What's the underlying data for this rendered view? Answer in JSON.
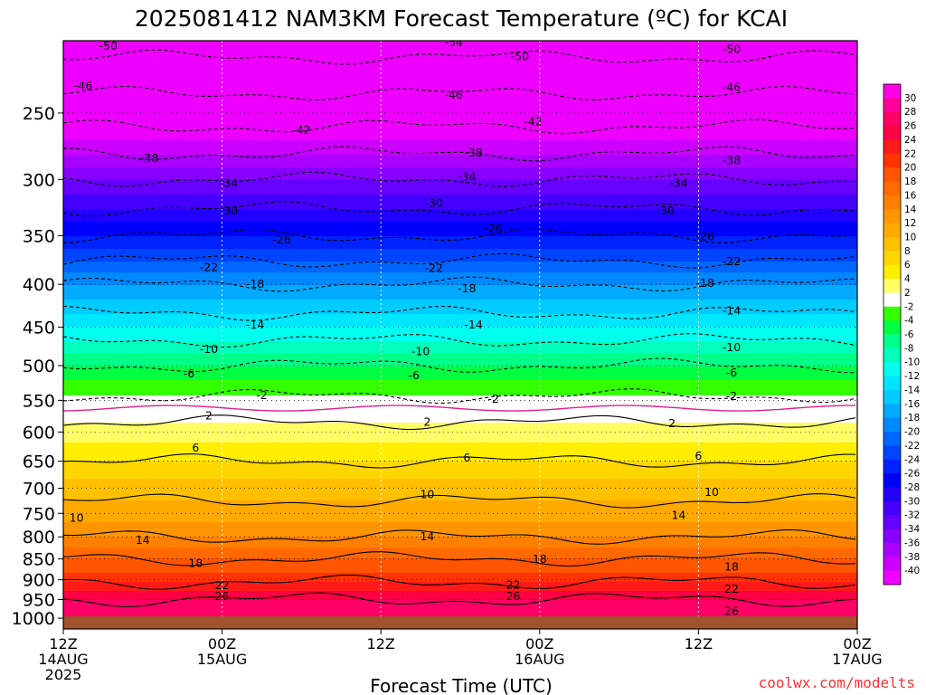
{
  "chart_data": {
    "type": "heatmap",
    "title": "2025081412 NAM3KM Forecast Temperature (ºC) for KCAI",
    "xlabel": "Forecast Time (UTC)",
    "ylabel": "",
    "credit": "coolwx.com/modelts",
    "y_axis": {
      "scale": "log-pressure",
      "range": [
        1030,
        205
      ],
      "tick_labels": [
        "250",
        "300",
        "350",
        "400",
        "450",
        "500",
        "550",
        "600",
        "650",
        "700",
        "750",
        "800",
        "850",
        "900",
        "950",
        "1000"
      ]
    },
    "x_axis": {
      "range_hours": [
        0,
        60
      ],
      "ticks": [
        {
          "hour": 0,
          "line1": "12Z",
          "line2": "14AUG",
          "line3": "2025"
        },
        {
          "hour": 12,
          "line1": "00Z",
          "line2": "15AUG",
          "line3": ""
        },
        {
          "hour": 24,
          "line1": "12Z",
          "line2": "",
          "line3": ""
        },
        {
          "hour": 36,
          "line1": "00Z",
          "line2": "16AUG",
          "line3": ""
        },
        {
          "hour": 48,
          "line1": "12Z",
          "line2": "",
          "line3": ""
        },
        {
          "hour": 60,
          "line1": "00Z",
          "line2": "17AUG",
          "line3": ""
        }
      ]
    },
    "colorbar": {
      "labels": [
        "30",
        "28",
        "26",
        "24",
        "22",
        "20",
        "18",
        "16",
        "14",
        "12",
        "10",
        "8",
        "6",
        "4",
        "2",
        "-2",
        "-4",
        "-6",
        "-8",
        "-10",
        "-12",
        "-14",
        "-16",
        "-18",
        "-20",
        "-22",
        "-24",
        "-26",
        "-28",
        "-30",
        "-32",
        "-34",
        "-36",
        "-38",
        "-40"
      ],
      "colors": [
        "#ff00e6",
        "#ff0099",
        "#ff0066",
        "#ff0044",
        "#ff1a1a",
        "#ff3300",
        "#ff5500",
        "#ff6a00",
        "#ff8000",
        "#ff9500",
        "#ffaa00",
        "#ffc000",
        "#ffd700",
        "#ffee00",
        "#ffff66",
        "#ffffff",
        "#33ff00",
        "#00ff40",
        "#00ff88",
        "#00ffbb",
        "#00ffee",
        "#00e6ff",
        "#00ccff",
        "#00aaff",
        "#0088ff",
        "#0066ff",
        "#0044ff",
        "#0022ff",
        "#0000ff",
        "#2200ff",
        "#4400ff",
        "#6600ff",
        "#8800ff",
        "#aa00ff",
        "#cc00ff",
        "#ee00ff"
      ]
    },
    "temperature_profile": [
      {
        "pressure": 1000,
        "temp": 28
      },
      {
        "pressure": 975,
        "temp": 27.5
      },
      {
        "pressure": 950,
        "temp": 26
      },
      {
        "pressure": 925,
        "temp": 23.5
      },
      {
        "pressure": 900,
        "temp": 21.5
      },
      {
        "pressure": 875,
        "temp": 19.5
      },
      {
        "pressure": 850,
        "temp": 18
      },
      {
        "pressure": 825,
        "temp": 16
      },
      {
        "pressure": 800,
        "temp": 14
      },
      {
        "pressure": 775,
        "temp": 12.5
      },
      {
        "pressure": 750,
        "temp": 11
      },
      {
        "pressure": 725,
        "temp": 10
      },
      {
        "pressure": 700,
        "temp": 9
      },
      {
        "pressure": 675,
        "temp": 7.5
      },
      {
        "pressure": 650,
        "temp": 6
      },
      {
        "pressure": 625,
        "temp": 4.5
      },
      {
        "pressure": 600,
        "temp": 2.8
      },
      {
        "pressure": 575,
        "temp": 1.5
      },
      {
        "pressure": 550,
        "temp": -1.5
      },
      {
        "pressure": 525,
        "temp": -3.5
      },
      {
        "pressure": 500,
        "temp": -6
      },
      {
        "pressure": 475,
        "temp": -9
      },
      {
        "pressure": 450,
        "temp": -12
      },
      {
        "pressure": 425,
        "temp": -15
      },
      {
        "pressure": 400,
        "temp": -18
      },
      {
        "pressure": 375,
        "temp": -22
      },
      {
        "pressure": 350,
        "temp": -26
      },
      {
        "pressure": 325,
        "temp": -30
      },
      {
        "pressure": 300,
        "temp": -34
      },
      {
        "pressure": 275,
        "temp": -39
      },
      {
        "pressure": 250,
        "temp": -44
      },
      {
        "pressure": 225,
        "temp": -48
      },
      {
        "pressure": 205,
        "temp": -52
      }
    ],
    "contour_labels": [
      {
        "text": "-50",
        "hour": 3.4,
        "pressure": 208
      },
      {
        "text": "-54",
        "hour": 29.5,
        "pressure": 206
      },
      {
        "text": "-50",
        "hour": 34.5,
        "pressure": 214
      },
      {
        "text": "-50",
        "hour": 50.5,
        "pressure": 210
      },
      {
        "text": "-46",
        "hour": 1.5,
        "pressure": 232
      },
      {
        "text": "-46",
        "hour": 29.5,
        "pressure": 238
      },
      {
        "text": "-46",
        "hour": 50.5,
        "pressure": 233
      },
      {
        "text": "-42",
        "hour": 18,
        "pressure": 262
      },
      {
        "text": "-42",
        "hour": 35.5,
        "pressure": 256
      },
      {
        "text": "-38",
        "hour": 6.5,
        "pressure": 283
      },
      {
        "text": "-38",
        "hour": 31,
        "pressure": 279
      },
      {
        "text": "-38",
        "hour": 50.5,
        "pressure": 285
      },
      {
        "text": "-34",
        "hour": 12.5,
        "pressure": 303
      },
      {
        "text": "-34",
        "hour": 30.5,
        "pressure": 298
      },
      {
        "text": "-34",
        "hour": 46.5,
        "pressure": 303
      },
      {
        "text": "-30",
        "hour": 12.5,
        "pressure": 327
      },
      {
        "text": "-30",
        "hour": 28,
        "pressure": 320
      },
      {
        "text": "-30",
        "hour": 45.5,
        "pressure": 327
      },
      {
        "text": "-26",
        "hour": 16.5,
        "pressure": 354
      },
      {
        "text": "-26",
        "hour": 32.5,
        "pressure": 343
      },
      {
        "text": "-26",
        "hour": 48.5,
        "pressure": 351
      },
      {
        "text": "-22",
        "hour": 11,
        "pressure": 382
      },
      {
        "text": "-22",
        "hour": 28,
        "pressure": 383
      },
      {
        "text": "-22",
        "hour": 50.5,
        "pressure": 376
      },
      {
        "text": "-18",
        "hour": 14.5,
        "pressure": 400
      },
      {
        "text": "-18",
        "hour": 30.5,
        "pressure": 405
      },
      {
        "text": "-18",
        "hour": 48.5,
        "pressure": 399
      },
      {
        "text": "-14",
        "hour": 14.5,
        "pressure": 447
      },
      {
        "text": "-14",
        "hour": 31,
        "pressure": 447
      },
      {
        "text": "-14",
        "hour": 50.5,
        "pressure": 430
      },
      {
        "text": "-10",
        "hour": 11,
        "pressure": 478
      },
      {
        "text": "-10",
        "hour": 27,
        "pressure": 481
      },
      {
        "text": "-10",
        "hour": 50.5,
        "pressure": 476
      },
      {
        "text": "-6",
        "hour": 9.5,
        "pressure": 511
      },
      {
        "text": "-6",
        "hour": 26.5,
        "pressure": 514
      },
      {
        "text": "-6",
        "hour": 50.5,
        "pressure": 510
      },
      {
        "text": "-2",
        "hour": 15,
        "pressure": 543
      },
      {
        "text": "-2",
        "hour": 32.5,
        "pressure": 548
      },
      {
        "text": "-2",
        "hour": 50.5,
        "pressure": 544
      },
      {
        "text": "2",
        "hour": 11,
        "pressure": 574
      },
      {
        "text": "2",
        "hour": 27.5,
        "pressure": 584
      },
      {
        "text": "2",
        "hour": 46,
        "pressure": 586
      },
      {
        "text": "6",
        "hour": 10,
        "pressure": 627
      },
      {
        "text": "6",
        "hour": 30.5,
        "pressure": 644
      },
      {
        "text": "6",
        "hour": 48,
        "pressure": 641
      },
      {
        "text": "10",
        "hour": 1,
        "pressure": 760
      },
      {
        "text": "10",
        "hour": 27.5,
        "pressure": 712
      },
      {
        "text": "10",
        "hour": 49,
        "pressure": 708
      },
      {
        "text": "14",
        "hour": 6,
        "pressure": 807
      },
      {
        "text": "14",
        "hour": 27.5,
        "pressure": 800
      },
      {
        "text": "14",
        "hour": 46.5,
        "pressure": 754
      },
      {
        "text": "18",
        "hour": 10,
        "pressure": 860
      },
      {
        "text": "18",
        "hour": 36,
        "pressure": 851
      },
      {
        "text": "18",
        "hour": 50.5,
        "pressure": 869
      },
      {
        "text": "22",
        "hour": 12,
        "pressure": 914
      },
      {
        "text": "22",
        "hour": 34,
        "pressure": 913
      },
      {
        "text": "22",
        "hour": 50.5,
        "pressure": 923
      },
      {
        "text": "26",
        "hour": 12,
        "pressure": 942
      },
      {
        "text": "26",
        "hour": 34,
        "pressure": 942
      },
      {
        "text": "26",
        "hour": 50.5,
        "pressure": 981
      }
    ],
    "terrain_color": "#a0522d"
  }
}
